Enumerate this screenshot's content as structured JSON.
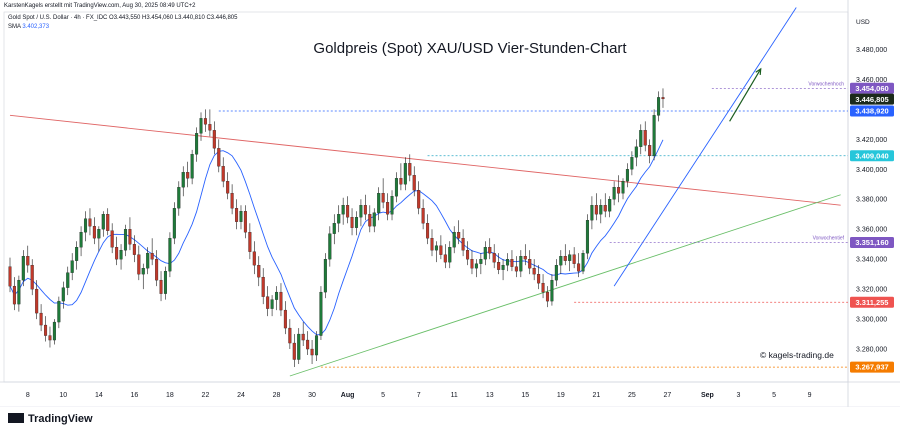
{
  "header": {
    "attribution": "KarstenKagels erstellt mit TradingView.com, Aug 30, 2025 08:49 UTC+2",
    "symbol_line": "Gold Spot / U.S. Dollar · 4h · FX_IDC  O3.443,550  H3.454,060  L3.440,810  C3.446,805",
    "sma_label": "SMA",
    "sma_value": "3.402,373"
  },
  "watermark": "© kagels-trading.de",
  "brand": "TradingView",
  "colors": {
    "up": "#26a69a",
    "down": "#ef5350",
    "candle_up": "#1f7a3a",
    "candle_down": "#c0392b",
    "sma": "#2962ff",
    "trend_red": "#e06666",
    "trend_green": "#6abf69",
    "trend_blue": "#2962ff",
    "arrow": "#1b5e20"
  },
  "chart_data": {
    "type": "candlestick",
    "title": "Goldpreis (Spot) XAU/USD Vier-Stunden-Chart",
    "currency_label": "USD",
    "ylim": [
      3258,
      3505
    ],
    "y_ticks": [
      3280,
      3300,
      3320,
      3340,
      3360,
      3380,
      3400,
      3420,
      3440,
      3460,
      3480
    ],
    "y_tick_labels": [
      "3.280,000",
      "3.300,000",
      "3.320,000",
      "3.340,000",
      "3.360,000",
      "3.380,000",
      "3.400,000",
      "3.420,000",
      "3.440,000",
      "3.460,000",
      "3.480,000"
    ],
    "x_labels": [
      "8",
      "10",
      "14",
      "16",
      "18",
      "22",
      "24",
      "28",
      "30",
      "Aug",
      "5",
      "7",
      "11",
      "13",
      "15",
      "19",
      "21",
      "25",
      "27",
      "Sep",
      "3",
      "5",
      "9"
    ],
    "x_label_index": [
      4,
      12,
      20,
      28,
      36,
      44,
      52,
      60,
      68,
      76,
      84,
      92,
      100,
      108,
      116,
      124,
      132,
      140,
      148,
      157,
      164,
      172,
      180
    ],
    "levels": [
      {
        "value": 3454.06,
        "label": "3.454,060",
        "note": "Vorwochenhoch",
        "color": "#7e57c2",
        "style": "dashed",
        "badge": "#7e57c2",
        "from": 158
      },
      {
        "value": 3446.805,
        "label": "3.446,805",
        "note": "",
        "color": "#131722",
        "style": "none",
        "badge": "#1b2a1b",
        "from": 0
      },
      {
        "value": 3438.92,
        "label": "3.438,920",
        "note": "",
        "color": "#2962ff",
        "style": "dashed",
        "badge": "#2962ff",
        "from": 47
      },
      {
        "value": 3409.04,
        "label": "3.409,040",
        "note": "",
        "color": "#26a6c4",
        "style": "dashed",
        "badge": "#26c6da",
        "from": 94
      },
      {
        "value": 3351.16,
        "label": "3.351,160",
        "note": "Vorwochentief",
        "color": "#7e57c2",
        "style": "dashed",
        "badge": "#7e57c2",
        "from": 135
      },
      {
        "value": 3311.255,
        "label": "3.311,255",
        "note": "",
        "color": "#ef5350",
        "style": "dashed",
        "badge": "#ef5350",
        "from": 127
      },
      {
        "value": 3267.937,
        "label": "3.267,937",
        "note": "",
        "color": "#f57c00",
        "style": "dashed",
        "badge": "#f57c00",
        "from": 70
      }
    ],
    "trendlines": [
      {
        "name": "",
        "color": "#e06666",
        "from": [
          0,
          3436
        ],
        "to": [
          187,
          3376
        ]
      },
      {
        "name": "",
        "color": "#6abf69",
        "from": [
          63,
          3262
        ],
        "to": [
          187,
          3383
        ]
      },
      {
        "name": "",
        "color": "#2962ff",
        "from": [
          136,
          3322
        ],
        "to": [
          177,
          3508
        ]
      }
    ],
    "arrow": {
      "from": [
        162,
        3432
      ],
      "to": [
        169,
        3467
      ]
    },
    "ohlc": [
      [
        3335,
        3341,
        3318,
        3322
      ],
      [
        3322,
        3328,
        3306,
        3310
      ],
      [
        3310,
        3329,
        3305,
        3326
      ],
      [
        3326,
        3346,
        3322,
        3342
      ],
      [
        3342,
        3349,
        3331,
        3336
      ],
      [
        3336,
        3340,
        3316,
        3320
      ],
      [
        3320,
        3326,
        3300,
        3304
      ],
      [
        3304,
        3310,
        3292,
        3296
      ],
      [
        3296,
        3302,
        3285,
        3289
      ],
      [
        3289,
        3295,
        3281,
        3286
      ],
      [
        3286,
        3300,
        3283,
        3298
      ],
      [
        3298,
        3315,
        3294,
        3312
      ],
      [
        3312,
        3325,
        3307,
        3321
      ],
      [
        3321,
        3335,
        3316,
        3331
      ],
      [
        3331,
        3344,
        3326,
        3339
      ],
      [
        3339,
        3352,
        3333,
        3348
      ],
      [
        3348,
        3362,
        3342,
        3358
      ],
      [
        3358,
        3372,
        3352,
        3367
      ],
      [
        3367,
        3374,
        3356,
        3362
      ],
      [
        3362,
        3368,
        3350,
        3354
      ],
      [
        3354,
        3362,
        3345,
        3360
      ],
      [
        3360,
        3372,
        3355,
        3370
      ],
      [
        3370,
        3374,
        3356,
        3359
      ],
      [
        3359,
        3364,
        3344,
        3348
      ],
      [
        3348,
        3355,
        3336,
        3340
      ],
      [
        3340,
        3350,
        3333,
        3346
      ],
      [
        3346,
        3363,
        3342,
        3360
      ],
      [
        3360,
        3368,
        3346,
        3350
      ],
      [
        3350,
        3356,
        3338,
        3343
      ],
      [
        3343,
        3349,
        3326,
        3330
      ],
      [
        3330,
        3337,
        3320,
        3334
      ],
      [
        3334,
        3348,
        3330,
        3344
      ],
      [
        3344,
        3354,
        3336,
        3340
      ],
      [
        3340,
        3346,
        3322,
        3326
      ],
      [
        3326,
        3332,
        3312,
        3317
      ],
      [
        3317,
        3335,
        3313,
        3332
      ],
      [
        3332,
        3358,
        3328,
        3354
      ],
      [
        3354,
        3378,
        3350,
        3374
      ],
      [
        3374,
        3392,
        3369,
        3388
      ],
      [
        3388,
        3402,
        3382,
        3398
      ],
      [
        3398,
        3405,
        3388,
        3394
      ],
      [
        3394,
        3413,
        3390,
        3410
      ],
      [
        3410,
        3428,
        3405,
        3424
      ],
      [
        3424,
        3438,
        3419,
        3434
      ],
      [
        3434,
        3440,
        3425,
        3430
      ],
      [
        3430,
        3440,
        3422,
        3426
      ],
      [
        3426,
        3432,
        3410,
        3414
      ],
      [
        3414,
        3420,
        3398,
        3402
      ],
      [
        3402,
        3408,
        3388,
        3392
      ],
      [
        3392,
        3398,
        3380,
        3384
      ],
      [
        3384,
        3390,
        3370,
        3374
      ],
      [
        3374,
        3380,
        3360,
        3365
      ],
      [
        3365,
        3376,
        3360,
        3372
      ],
      [
        3372,
        3376,
        3354,
        3358
      ],
      [
        3358,
        3364,
        3340,
        3345
      ],
      [
        3345,
        3352,
        3330,
        3336
      ],
      [
        3336,
        3342,
        3322,
        3328
      ],
      [
        3328,
        3334,
        3310,
        3315
      ],
      [
        3315,
        3322,
        3302,
        3307
      ],
      [
        3307,
        3316,
        3302,
        3313
      ],
      [
        3313,
        3322,
        3306,
        3318
      ],
      [
        3318,
        3324,
        3302,
        3306
      ],
      [
        3306,
        3312,
        3290,
        3294
      ],
      [
        3294,
        3300,
        3280,
        3284
      ],
      [
        3284,
        3290,
        3268,
        3273
      ],
      [
        3273,
        3294,
        3270,
        3290
      ],
      [
        3290,
        3298,
        3282,
        3286
      ],
      [
        3286,
        3292,
        3276,
        3280
      ],
      [
        3280,
        3286,
        3270,
        3276
      ],
      [
        3276,
        3292,
        3272,
        3289
      ],
      [
        3289,
        3322,
        3286,
        3318
      ],
      [
        3318,
        3344,
        3314,
        3340
      ],
      [
        3340,
        3362,
        3335,
        3357
      ],
      [
        3357,
        3370,
        3350,
        3364
      ],
      [
        3364,
        3376,
        3358,
        3370
      ],
      [
        3370,
        3381,
        3363,
        3376
      ],
      [
        3376,
        3382,
        3364,
        3368
      ],
      [
        3368,
        3374,
        3356,
        3361
      ],
      [
        3361,
        3372,
        3356,
        3368
      ],
      [
        3368,
        3380,
        3362,
        3376
      ],
      [
        3376,
        3383,
        3366,
        3370
      ],
      [
        3370,
        3376,
        3358,
        3362
      ],
      [
        3362,
        3374,
        3358,
        3371
      ],
      [
        3371,
        3388,
        3366,
        3384
      ],
      [
        3384,
        3394,
        3374,
        3378
      ],
      [
        3378,
        3384,
        3366,
        3370
      ],
      [
        3370,
        3386,
        3366,
        3382
      ],
      [
        3382,
        3398,
        3378,
        3394
      ],
      [
        3394,
        3404,
        3386,
        3390
      ],
      [
        3390,
        3408,
        3386,
        3404
      ],
      [
        3404,
        3410,
        3392,
        3396
      ],
      [
        3396,
        3402,
        3382,
        3386
      ],
      [
        3386,
        3392,
        3370,
        3374
      ],
      [
        3374,
        3380,
        3360,
        3364
      ],
      [
        3364,
        3370,
        3350,
        3354
      ],
      [
        3354,
        3360,
        3342,
        3346
      ],
      [
        3346,
        3352,
        3338,
        3349
      ],
      [
        3349,
        3356,
        3340,
        3343
      ],
      [
        3343,
        3350,
        3334,
        3338
      ],
      [
        3338,
        3352,
        3334,
        3348
      ],
      [
        3348,
        3362,
        3344,
        3358
      ],
      [
        3358,
        3366,
        3350,
        3354
      ],
      [
        3354,
        3360,
        3342,
        3346
      ],
      [
        3346,
        3352,
        3336,
        3340
      ],
      [
        3340,
        3346,
        3330,
        3334
      ],
      [
        3334,
        3340,
        3328,
        3337
      ],
      [
        3337,
        3344,
        3330,
        3340
      ],
      [
        3340,
        3352,
        3336,
        3348
      ],
      [
        3348,
        3354,
        3340,
        3344
      ],
      [
        3344,
        3350,
        3334,
        3338
      ],
      [
        3338,
        3344,
        3330,
        3333
      ],
      [
        3333,
        3340,
        3326,
        3336
      ],
      [
        3336,
        3344,
        3332,
        3340
      ],
      [
        3340,
        3346,
        3332,
        3335
      ],
      [
        3335,
        3342,
        3328,
        3332
      ],
      [
        3332,
        3346,
        3328,
        3342
      ],
      [
        3342,
        3350,
        3336,
        3340
      ],
      [
        3340,
        3346,
        3330,
        3334
      ],
      [
        3334,
        3340,
        3326,
        3330
      ],
      [
        3330,
        3336,
        3320,
        3324
      ],
      [
        3324,
        3330,
        3314,
        3318
      ],
      [
        3318,
        3322,
        3308,
        3312
      ],
      [
        3312,
        3330,
        3309,
        3326
      ],
      [
        3326,
        3340,
        3322,
        3336
      ],
      [
        3336,
        3346,
        3330,
        3342
      ],
      [
        3342,
        3350,
        3336,
        3339
      ],
      [
        3339,
        3346,
        3332,
        3343
      ],
      [
        3343,
        3348,
        3334,
        3337
      ],
      [
        3337,
        3344,
        3328,
        3332
      ],
      [
        3332,
        3346,
        3330,
        3344
      ],
      [
        3344,
        3370,
        3340,
        3366
      ],
      [
        3366,
        3382,
        3360,
        3376
      ],
      [
        3376,
        3384,
        3366,
        3370
      ],
      [
        3370,
        3380,
        3364,
        3376
      ],
      [
        3376,
        3384,
        3368,
        3372
      ],
      [
        3372,
        3382,
        3368,
        3380
      ],
      [
        3380,
        3392,
        3376,
        3388
      ],
      [
        3388,
        3396,
        3378,
        3384
      ],
      [
        3384,
        3394,
        3380,
        3392
      ],
      [
        3392,
        3404,
        3388,
        3400
      ],
      [
        3400,
        3412,
        3396,
        3408
      ],
      [
        3408,
        3420,
        3402,
        3415
      ],
      [
        3415,
        3430,
        3410,
        3426
      ],
      [
        3426,
        3432,
        3412,
        3416
      ],
      [
        3416,
        3420,
        3404,
        3409
      ],
      [
        3409,
        3440,
        3406,
        3436
      ],
      [
        3436,
        3452,
        3432,
        3448
      ],
      [
        3448,
        3454,
        3441,
        3447
      ]
    ],
    "sma_values": null
  }
}
